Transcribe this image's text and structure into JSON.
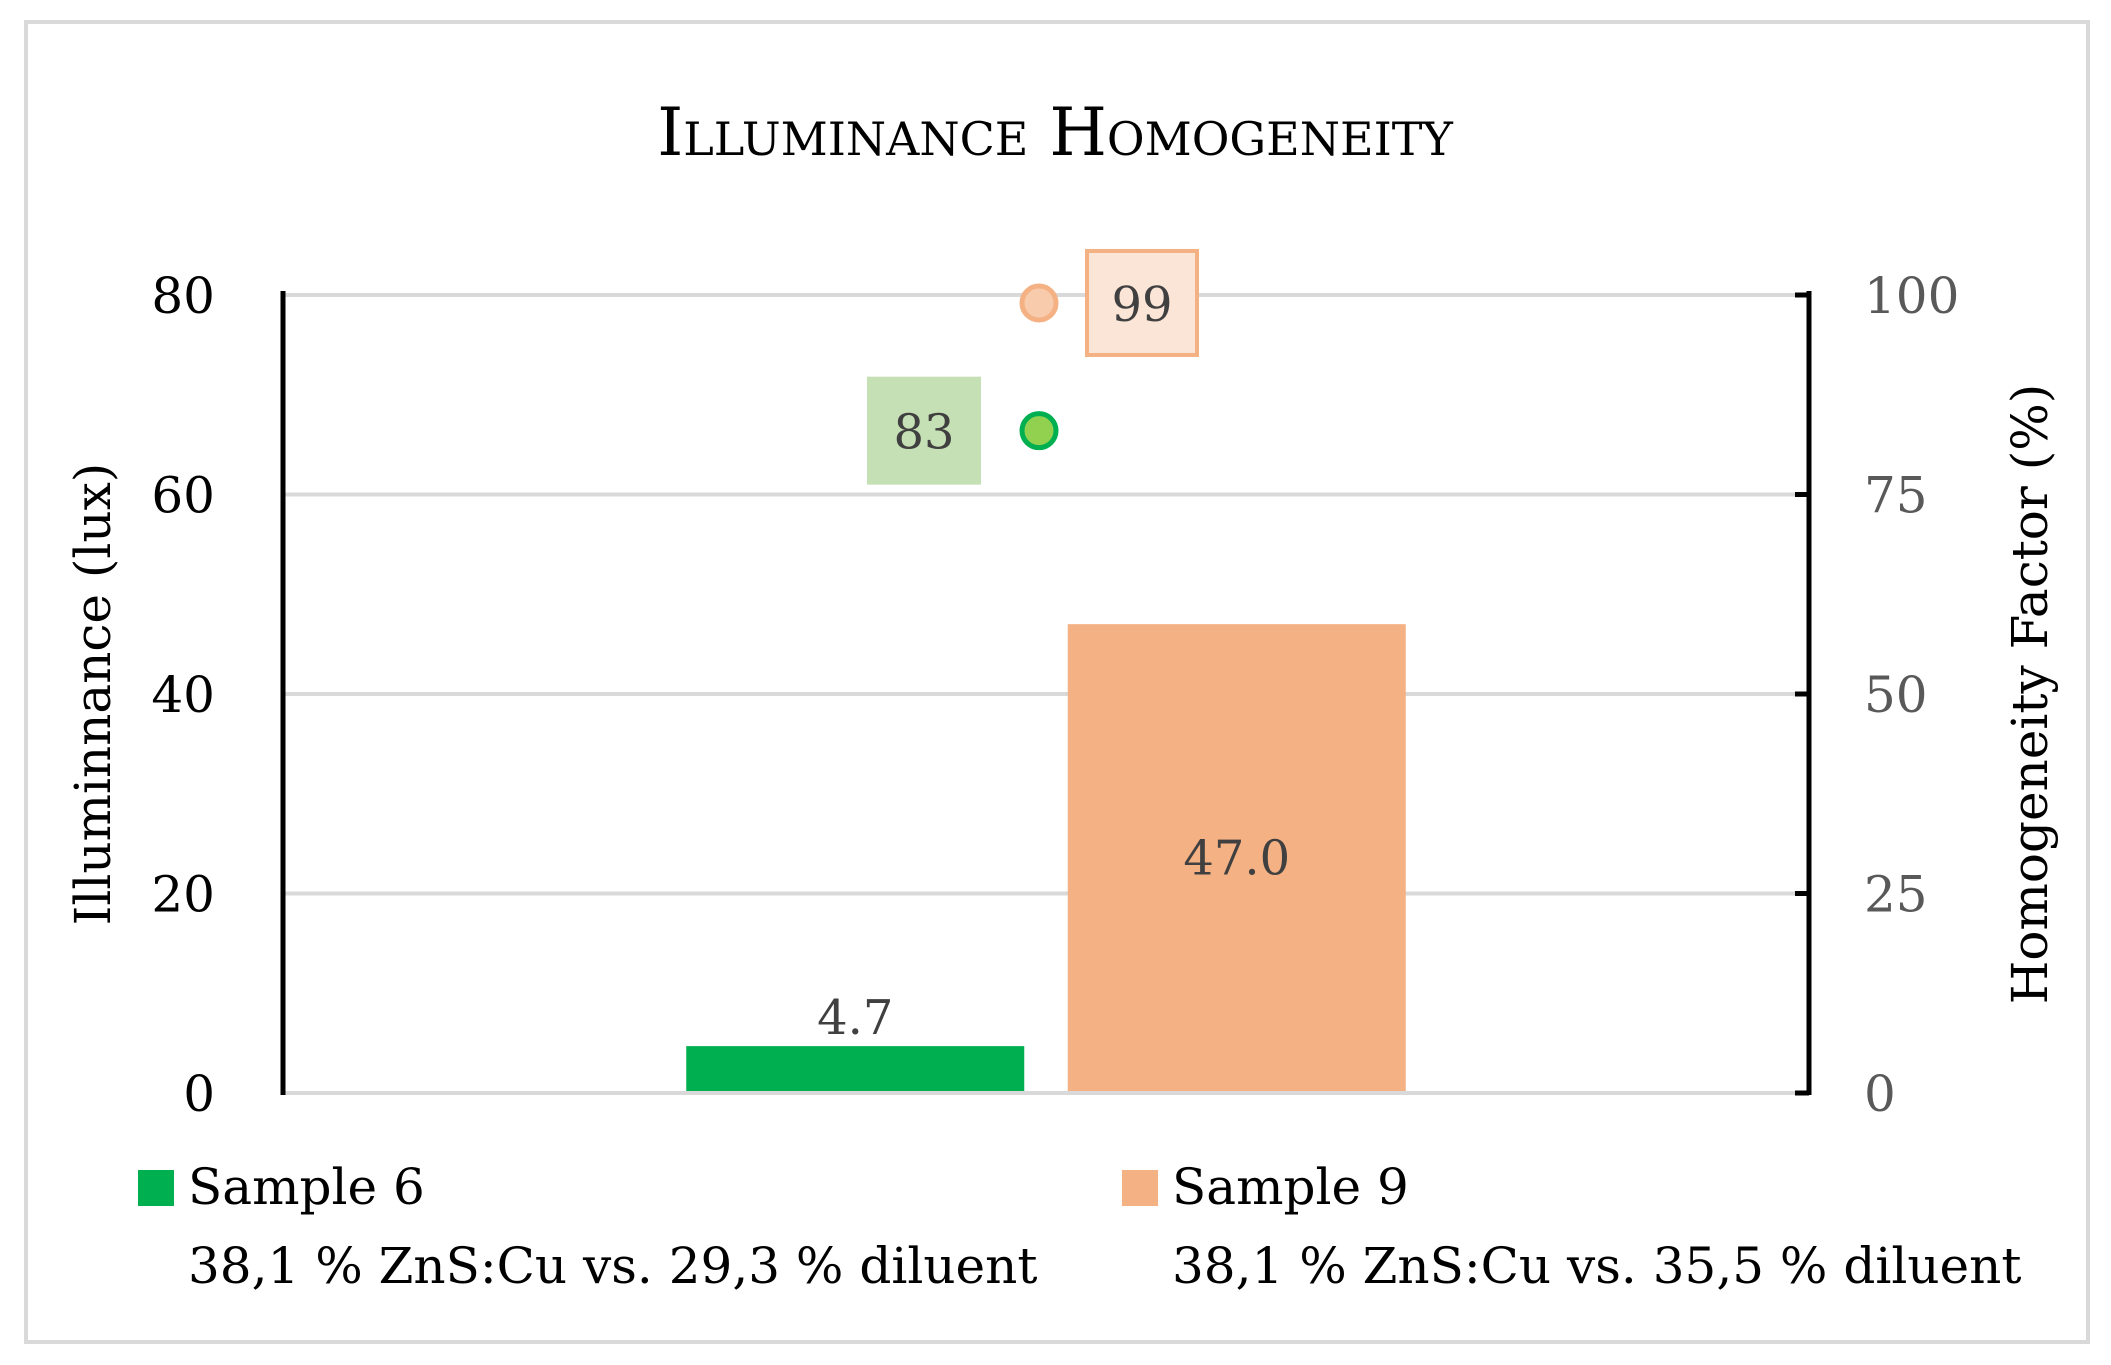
{
  "chart_data": {
    "type": "bar",
    "title": "Illuminance Homogeneity",
    "ylabel": "Illuminnance (lux)",
    "y2label": "Homogeneity Factor (%)",
    "ylim": [
      0,
      80
    ],
    "y2lim": [
      0,
      100
    ],
    "yticks": [
      0,
      20,
      40,
      60,
      80
    ],
    "y2ticks": [
      0,
      25,
      50,
      75,
      100
    ],
    "grid": true,
    "legend_position": "bottom",
    "series": [
      {
        "name": "Sample 6",
        "description": "38,1 % ZnS:Cu vs. 29,3 % diluent",
        "illuminance": 4.7,
        "illuminance_label": "4.7",
        "homogeneity": 83,
        "homogeneity_label": "83",
        "color": "#00b050",
        "marker_fill": "#92d050",
        "marker_stroke": "#00b050",
        "label_box_fill": "#c5e0b4",
        "label_box_stroke": "#c5e0b4"
      },
      {
        "name": "Sample 9",
        "description": "38,1 % ZnS:Cu vs. 35,5 % diluent",
        "illuminance": 47.0,
        "illuminance_label": "47.0",
        "homogeneity": 99,
        "homogeneity_label": "99",
        "color": "#f4b183",
        "marker_fill": "#f8cbad",
        "marker_stroke": "#f4b183",
        "label_box_fill": "#fbe5d6",
        "label_box_stroke": "#f4b183"
      }
    ]
  }
}
